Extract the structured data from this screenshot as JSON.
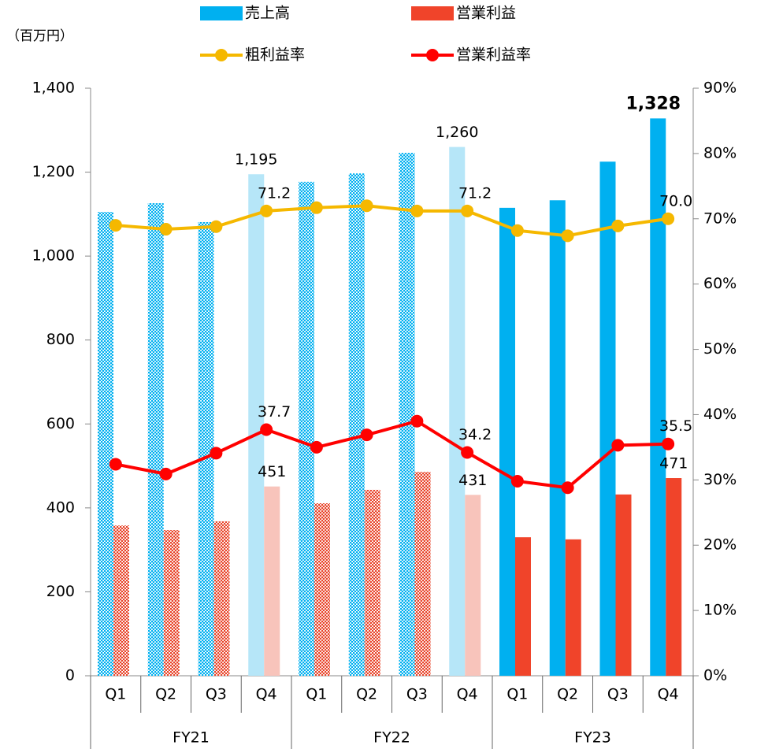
{
  "chart_data": {
    "type": "bar-line",
    "y_axis_label": "（百万円）",
    "categories": [
      "Q1",
      "Q2",
      "Q3",
      "Q4",
      "Q1",
      "Q2",
      "Q3",
      "Q4",
      "Q1",
      "Q2",
      "Q3",
      "Q4"
    ],
    "groups": [
      {
        "name": "FY21",
        "span": 4
      },
      {
        "name": "FY22",
        "span": 4
      },
      {
        "name": "FY23",
        "span": 4
      }
    ],
    "ylim": [
      0,
      1400
    ],
    "yticks": [
      0,
      200,
      400,
      600,
      800,
      {
        "value": 1000,
        "label": "1,000"
      },
      {
        "value": 1200,
        "label": "1,200"
      },
      {
        "value": 1400,
        "label": "1,400"
      }
    ],
    "y2lim": [
      0,
      90
    ],
    "y2ticks": [
      {
        "value": 0,
        "label": "0%"
      },
      {
        "value": 10,
        "label": "10%"
      },
      {
        "value": 20,
        "label": "20%"
      },
      {
        "value": 30,
        "label": "30%"
      },
      {
        "value": 40,
        "label": "40%"
      },
      {
        "value": 50,
        "label": "50%"
      },
      {
        "value": 60,
        "label": "60%"
      },
      {
        "value": 70,
        "label": "70%"
      },
      {
        "value": 80,
        "label": "80%"
      },
      {
        "value": 90,
        "label": "90%"
      }
    ],
    "series": [
      {
        "name": "売上高",
        "type": "bar",
        "color": "#00b0f0",
        "values": [
          1105,
          1126,
          1081,
          1195,
          1177,
          1197,
          1246,
          1260,
          1115,
          1133,
          1225,
          1328
        ],
        "value_labels": [
          null,
          null,
          null,
          "1,195",
          null,
          null,
          null,
          "1,260",
          null,
          null,
          null,
          "1,328"
        ],
        "point_colors": [
          "#00b0f0",
          "#00b0f0",
          "#00b0f0",
          "#b6e6f8",
          "#00b0f0",
          "#00b0f0",
          "#00b0f0",
          "#b6e6f8",
          "#00b0f0",
          "#00b0f0",
          "#00b0f0",
          "#00b0f0"
        ],
        "hatched": [
          true,
          true,
          true,
          false,
          true,
          true,
          true,
          false,
          false,
          false,
          false,
          false
        ],
        "emphasis": 11
      },
      {
        "name": "営業利益",
        "type": "bar",
        "color": "#f0442a",
        "values": [
          358,
          347,
          368,
          451,
          411,
          443,
          486,
          431,
          330,
          325,
          432,
          471
        ],
        "value_labels": [
          null,
          null,
          null,
          451,
          null,
          null,
          null,
          431,
          null,
          null,
          null,
          471
        ],
        "point_colors": [
          "#e8442a",
          "#e8442a",
          "#e8442a",
          "#f8c4bb",
          "#e8442a",
          "#e8442a",
          "#e8442a",
          "#f8c4bb",
          "#f0442a",
          "#f0442a",
          "#f0442a",
          "#f0442a"
        ],
        "hatched": [
          true,
          true,
          true,
          false,
          true,
          true,
          true,
          false,
          false,
          false,
          false,
          false
        ]
      },
      {
        "name": "粗利益率",
        "type": "line",
        "axis": "y2",
        "color": "#f5b800",
        "values": [
          69.0,
          68.4,
          68.8,
          71.2,
          71.7,
          72.0,
          71.2,
          71.2,
          68.2,
          67.4,
          68.9,
          70.0
        ],
        "value_labels": [
          null,
          null,
          null,
          "71.2",
          null,
          null,
          null,
          "71.2",
          null,
          null,
          null,
          "70.0"
        ]
      },
      {
        "name": "営業利益率",
        "type": "line",
        "axis": "y2",
        "color": "#ff0000",
        "values": [
          32.4,
          30.9,
          34.1,
          37.7,
          35.0,
          36.9,
          39.0,
          34.2,
          29.8,
          28.8,
          35.3,
          35.5
        ],
        "value_labels": [
          null,
          null,
          null,
          "37.7",
          null,
          null,
          null,
          "34.2",
          null,
          null,
          null,
          "35.5"
        ]
      }
    ]
  }
}
